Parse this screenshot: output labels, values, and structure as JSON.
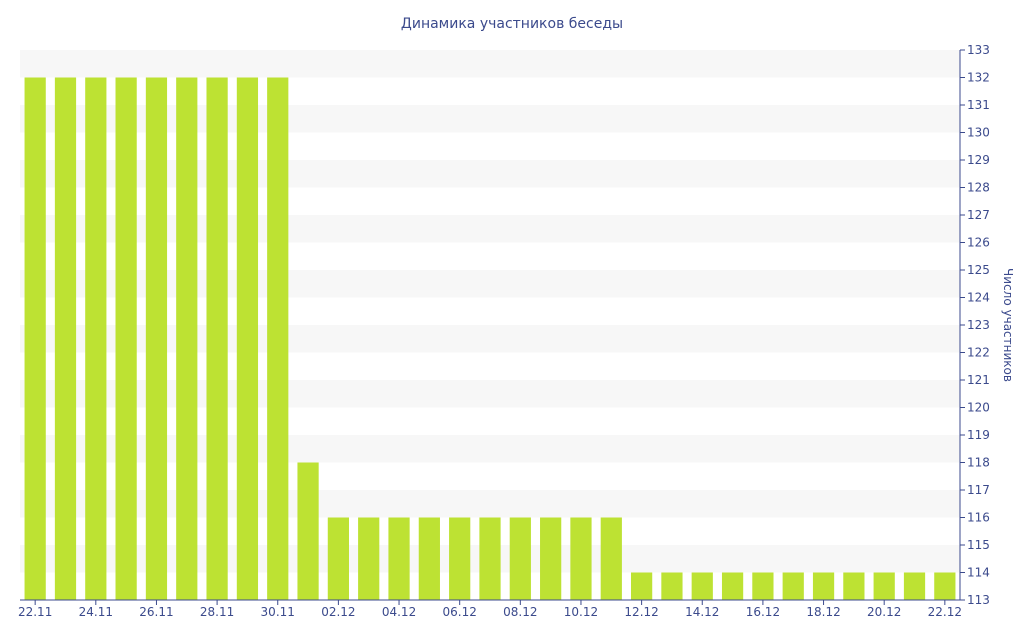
{
  "chart_data": {
    "type": "bar",
    "title": "Динамика участников беседы",
    "xlabel": "",
    "ylabel": "Число участников",
    "ylim": [
      113,
      133
    ],
    "grid": "horizontal alternating bands",
    "y_axis_side": "right",
    "bar_color": "#bde233",
    "axis_text_color": "#3b4a8c",
    "band_color": "#f7f7f7",
    "categories": [
      "22.11",
      "23.11",
      "24.11",
      "25.11",
      "26.11",
      "27.11",
      "28.11",
      "29.11",
      "30.11",
      "01.12",
      "02.12",
      "03.12",
      "04.12",
      "05.12",
      "06.12",
      "07.12",
      "08.12",
      "09.12",
      "10.12",
      "11.12",
      "12.12",
      "13.12",
      "14.12",
      "15.12",
      "16.12",
      "17.12",
      "18.12",
      "19.12",
      "20.12",
      "21.12",
      "22.12"
    ],
    "x_tick_labels": [
      "22.11",
      "24.11",
      "26.11",
      "28.11",
      "30.11",
      "02.12",
      "04.12",
      "06.12",
      "08.12",
      "10.12",
      "12.12",
      "14.12",
      "16.12",
      "18.12",
      "20.12",
      "22.12"
    ],
    "values": [
      132,
      132,
      132,
      132,
      132,
      132,
      132,
      132,
      132,
      118,
      116,
      116,
      116,
      116,
      116,
      116,
      116,
      116,
      116,
      116,
      114,
      114,
      114,
      114,
      114,
      114,
      114,
      114,
      114,
      114,
      114
    ],
    "y_ticks": [
      113,
      114,
      115,
      116,
      117,
      118,
      119,
      120,
      121,
      122,
      123,
      124,
      125,
      126,
      127,
      128,
      129,
      130,
      131,
      132,
      133
    ]
  }
}
